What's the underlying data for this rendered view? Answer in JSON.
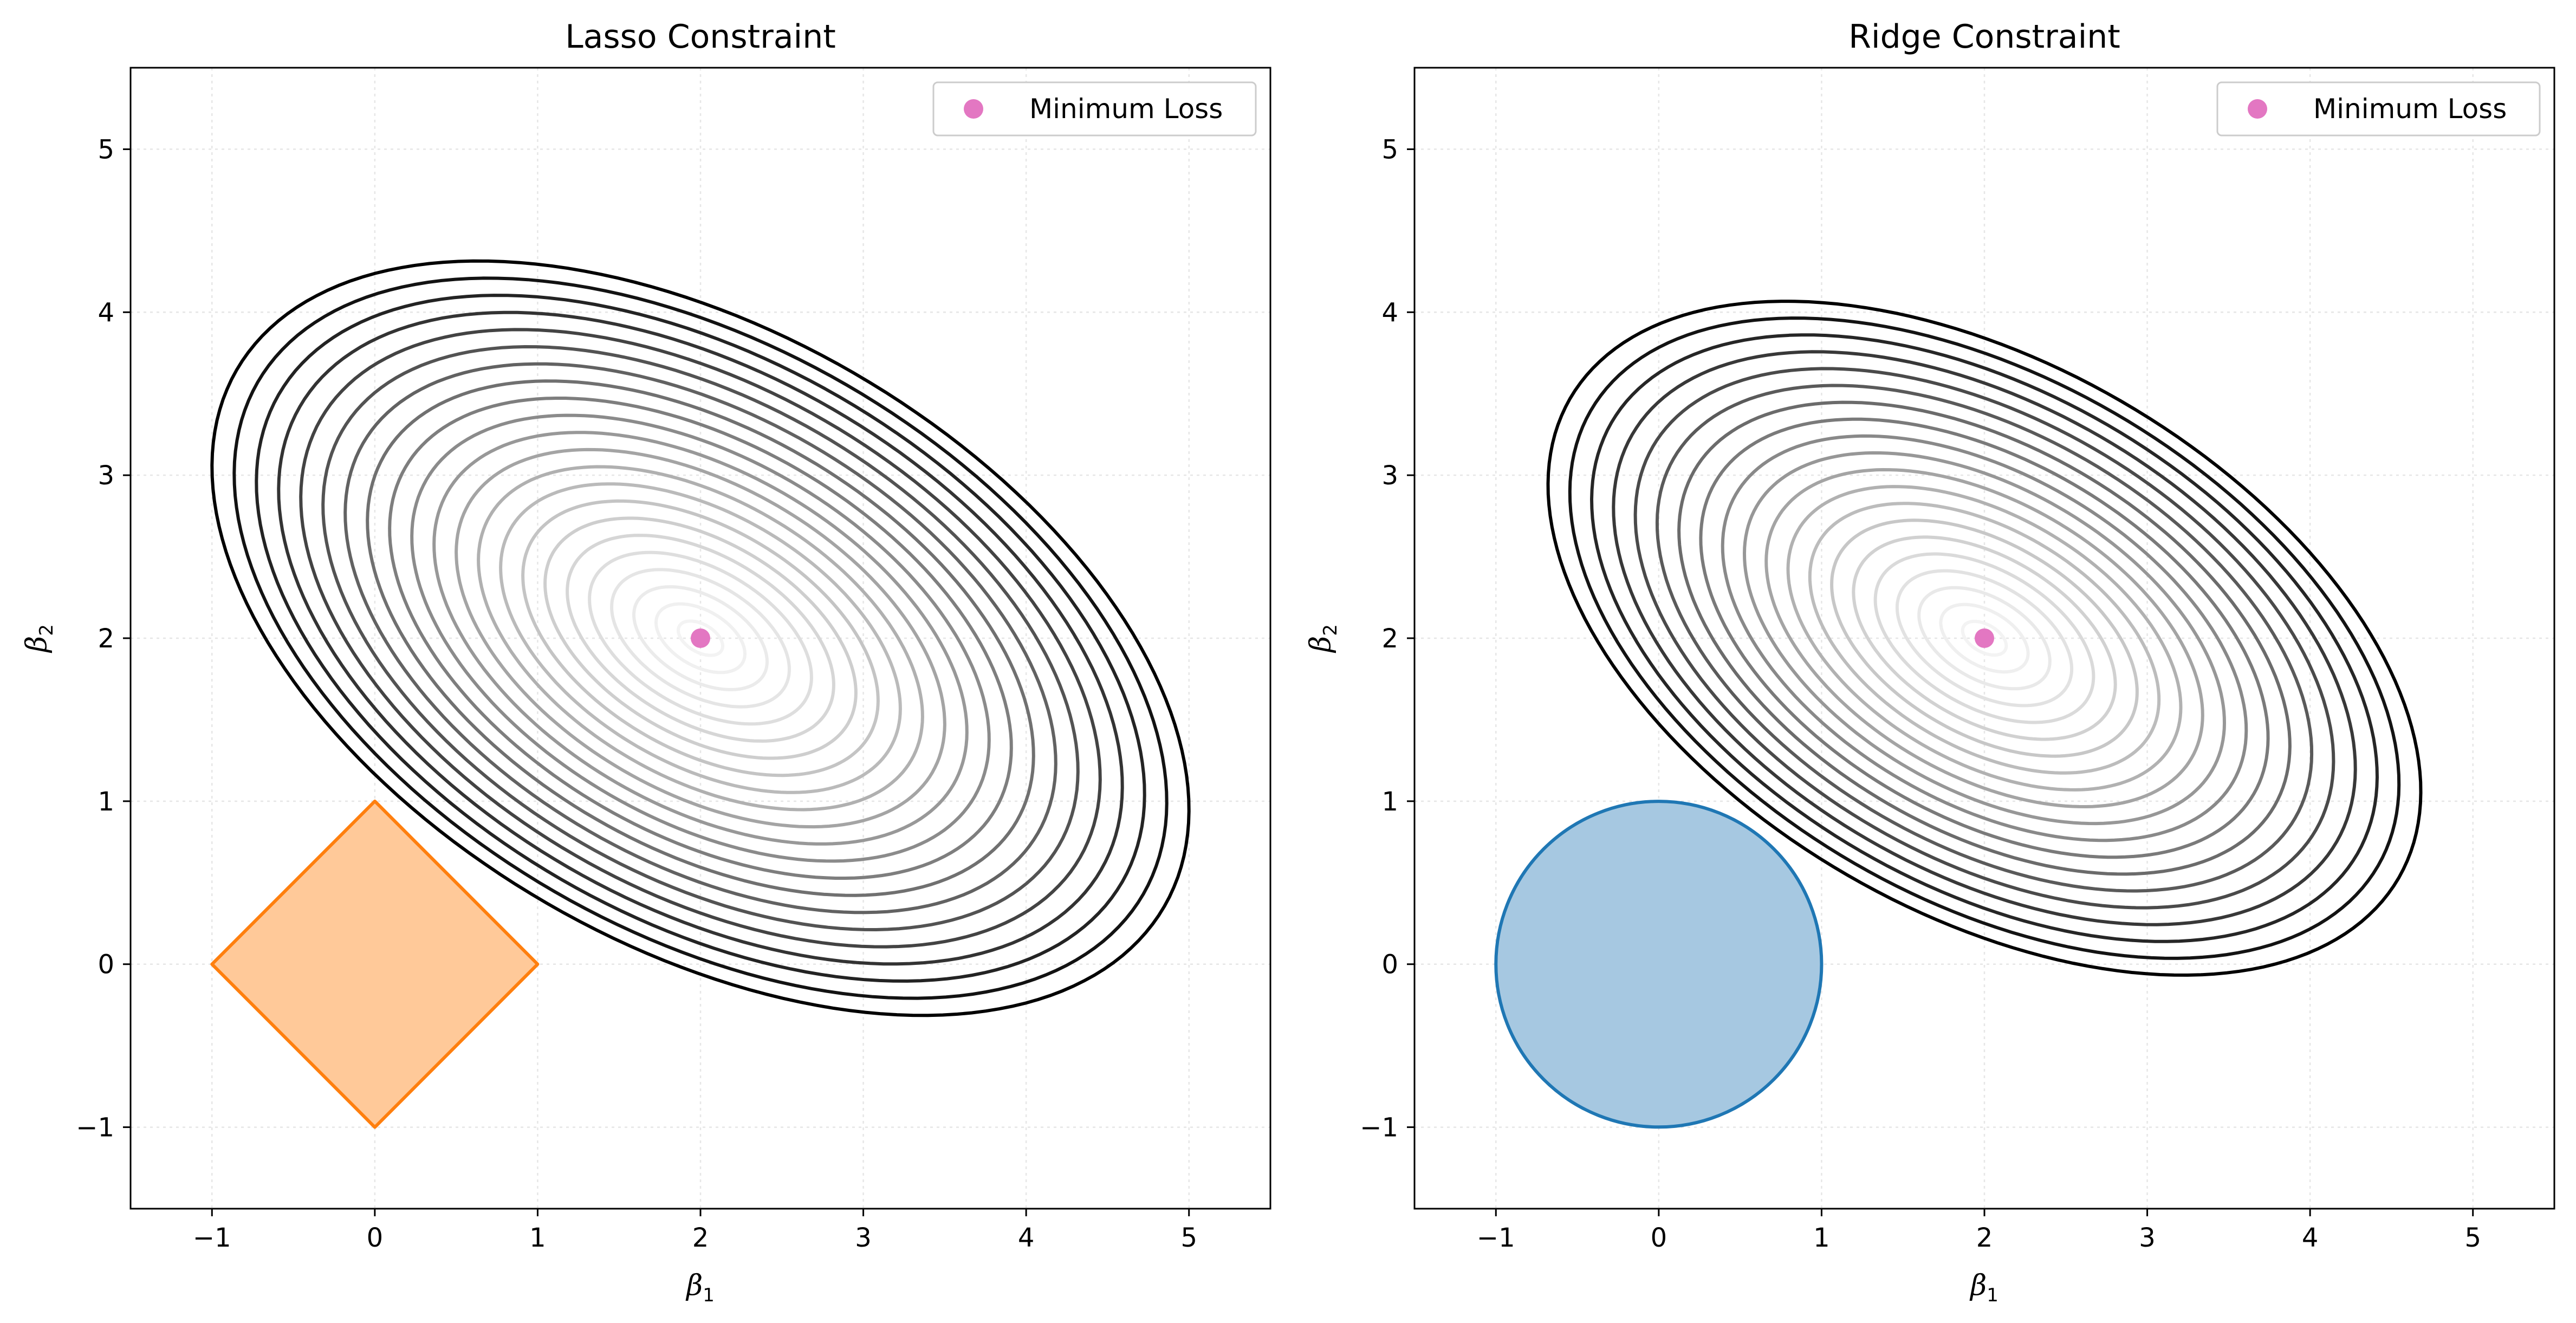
{
  "chart_data": [
    {
      "type": "contour",
      "title": "Lasso Constraint",
      "xlabel": "β",
      "xlabel_sub": "1",
      "ylabel": "β",
      "ylabel_sub": "2",
      "xlim": [
        -1.5,
        5.5
      ],
      "ylim": [
        -1.5,
        5.5
      ],
      "xticks": [
        -1,
        0,
        1,
        2,
        3,
        4,
        5
      ],
      "yticks": [
        -1,
        0,
        1,
        2,
        3,
        4,
        5
      ],
      "xtick_labels": [
        "−1",
        "0",
        "1",
        "2",
        "3",
        "4",
        "5"
      ],
      "ytick_labels": [
        "−1",
        "0",
        "1",
        "2",
        "3",
        "4",
        "5"
      ],
      "grid": true,
      "legend": {
        "position": "top-right",
        "entries": [
          "Minimum Loss"
        ]
      },
      "minimum_loss": {
        "x": 2,
        "y": 2
      },
      "constraint": {
        "shape": "diamond",
        "radius": 1,
        "vertices": [
          [
            0,
            1
          ],
          [
            1,
            0
          ],
          [
            0,
            -1
          ],
          [
            -1,
            0
          ]
        ],
        "fill_color": "#ffc999",
        "edge_color": "#ff7f0e"
      },
      "contour_center": [
        2,
        2
      ],
      "contour_rotation_deg": -30,
      "contour_axes_ratio": 1.75,
      "outer_contour": {
        "x_extent": [
          -1.0,
          5.0
        ],
        "y_extent": [
          -0.15,
          4.13
        ]
      },
      "contour_levels": 22
    },
    {
      "type": "contour",
      "title": "Ridge Constraint",
      "xlabel": "β",
      "xlabel_sub": "1",
      "ylabel": "β",
      "ylabel_sub": "2",
      "xlim": [
        -1.5,
        5.5
      ],
      "ylim": [
        -1.5,
        5.5
      ],
      "xticks": [
        -1,
        0,
        1,
        2,
        3,
        4,
        5
      ],
      "yticks": [
        -1,
        0,
        1,
        2,
        3,
        4,
        5
      ],
      "xtick_labels": [
        "−1",
        "0",
        "1",
        "2",
        "3",
        "4",
        "5"
      ],
      "ytick_labels": [
        "−1",
        "0",
        "1",
        "2",
        "3",
        "4",
        "5"
      ],
      "grid": true,
      "legend": {
        "position": "top-right",
        "entries": [
          "Minimum Loss"
        ]
      },
      "minimum_loss": {
        "x": 2,
        "y": 2
      },
      "constraint": {
        "shape": "circle",
        "radius": 1,
        "center": [
          0,
          0
        ],
        "fill_color": "#a6c8e1",
        "edge_color": "#1f77b4"
      },
      "contour_center": [
        2,
        2
      ],
      "contour_rotation_deg": -30,
      "contour_axes_ratio": 1.75,
      "outer_contour": {
        "x_extent": [
          -0.68,
          4.68
        ],
        "y_extent": [
          0.1,
          3.9
        ]
      },
      "contour_levels": 20
    }
  ],
  "colors": {
    "minimum_loss_marker": "#e377c2",
    "grid": "#e6e6e6",
    "axes": "#000000"
  }
}
